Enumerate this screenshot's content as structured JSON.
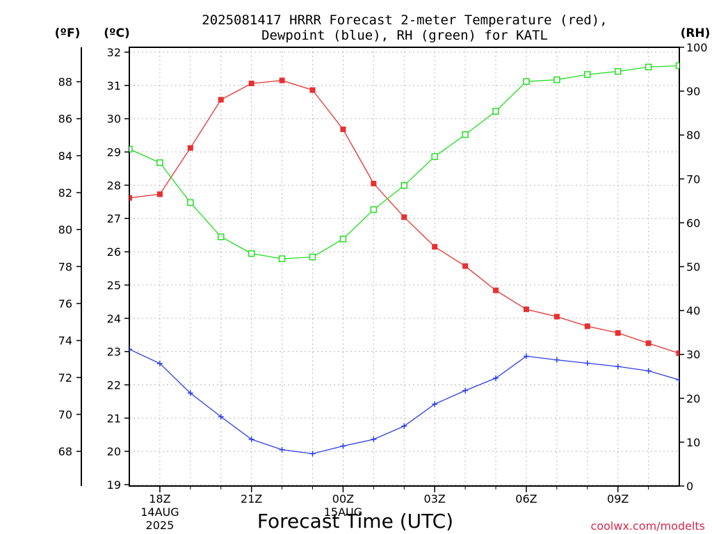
{
  "chart_data": {
    "type": "line",
    "title_line1": "2025081417 HRRR Forecast 2-meter Temperature (red),",
    "title_line2": "Dewpoint (blue), RH (green) for KATL",
    "xlabel": "Forecast Time (UTC)",
    "watermark": "coolwx.com/modelts",
    "unit_f": "(ºF)",
    "unit_c": "(ºC)",
    "unit_rh": "(RH)",
    "x_ticks": [
      {
        "hour": 1,
        "label": "18Z",
        "sub1": "14AUG",
        "sub2": "2025"
      },
      {
        "hour": 4,
        "label": "21Z",
        "sub1": "",
        "sub2": ""
      },
      {
        "hour": 7,
        "label": "00Z",
        "sub1": "15AUG",
        "sub2": ""
      },
      {
        "hour": 10,
        "label": "03Z",
        "sub1": "",
        "sub2": ""
      },
      {
        "hour": 13,
        "label": "06Z",
        "sub1": "",
        "sub2": ""
      },
      {
        "hour": 16,
        "label": "09Z",
        "sub1": "",
        "sub2": ""
      }
    ],
    "xlim": [
      0,
      18
    ],
    "ylim_c": [
      19,
      32
    ],
    "ylim_rh": [
      0,
      100
    ],
    "ticks_c": [
      "19",
      "20",
      "21",
      "22",
      "23",
      "24",
      "25",
      "26",
      "27",
      "28",
      "29",
      "30",
      "31",
      "32"
    ],
    "ticks_f": [
      "68",
      "70",
      "72",
      "74",
      "76",
      "78",
      "80",
      "82",
      "84",
      "86",
      "88"
    ],
    "ticks_rh": [
      "0",
      "10",
      "20",
      "30",
      "40",
      "50",
      "60",
      "70",
      "80",
      "90",
      "100"
    ],
    "grid": true,
    "series": [
      {
        "key": "temperature",
        "color": "#e83030",
        "marker": "filled-square",
        "values": [
          27.62,
          27.73,
          29.12,
          30.57,
          31.06,
          31.15,
          30.86,
          29.68,
          28.05,
          27.04,
          26.15,
          25.57,
          24.84,
          24.27,
          24.05,
          23.76,
          23.56,
          23.25,
          22.95
        ]
      },
      {
        "key": "dewpoint",
        "color": "#2c3ee8",
        "marker": "plus",
        "values": [
          23.07,
          22.64,
          21.75,
          21.04,
          20.36,
          20.05,
          19.93,
          20.16,
          20.36,
          20.76,
          21.42,
          21.83,
          22.2,
          22.86,
          22.75,
          22.65,
          22.55,
          22.42,
          22.15
        ]
      },
      {
        "key": "rh",
        "color": "#22dd22",
        "marker": "open-square",
        "values": [
          76.8,
          73.7,
          64.6,
          56.8,
          53.0,
          51.8,
          52.2,
          56.3,
          63.0,
          68.5,
          75.1,
          80.1,
          85.4,
          92.2,
          92.6,
          93.8,
          94.5,
          95.5,
          95.8
        ]
      }
    ]
  }
}
